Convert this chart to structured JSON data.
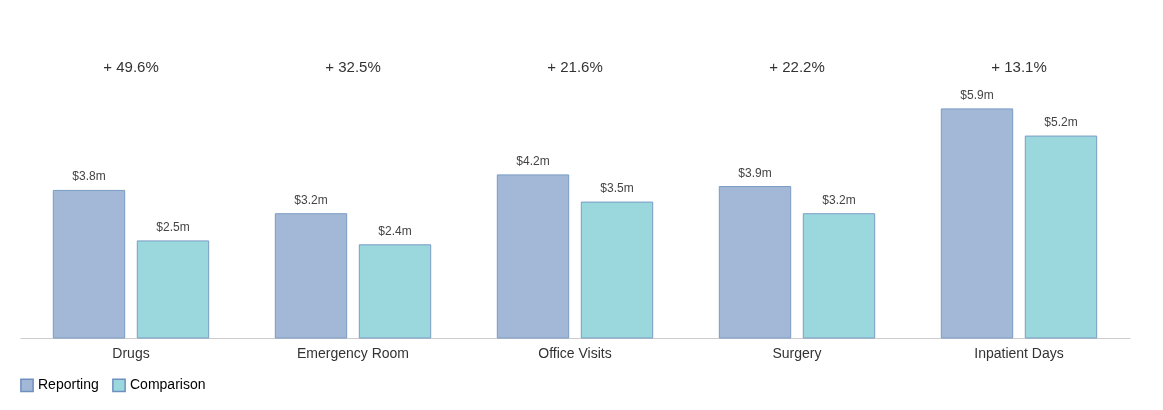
{
  "chart_data": {
    "type": "bar",
    "categories": [
      "Drugs",
      "Emergency Room",
      "Office Visits",
      "Surgery",
      "Inpatient Days"
    ],
    "series": [
      {
        "name": "Reporting",
        "color": "#a3b8d6",
        "values": [
          3.8,
          3.2,
          4.2,
          3.9,
          5.9
        ],
        "value_labels": [
          "$3.8m",
          "$3.2m",
          "$4.2m",
          "$3.9m",
          "$5.9m"
        ]
      },
      {
        "name": "Comparison",
        "color": "#9ad8de",
        "values": [
          2.5,
          2.4,
          3.5,
          3.2,
          5.2
        ],
        "value_labels": [
          "$2.5m",
          "$2.4m",
          "$3.5m",
          "$3.2m",
          "$5.2m"
        ]
      }
    ],
    "annotations": [
      "+ 49.6%",
      "+ 32.5%",
      "+ 21.6%",
      "+ 22.2%",
      "+ 13.1%"
    ],
    "legend": "bottom",
    "grid": false
  }
}
